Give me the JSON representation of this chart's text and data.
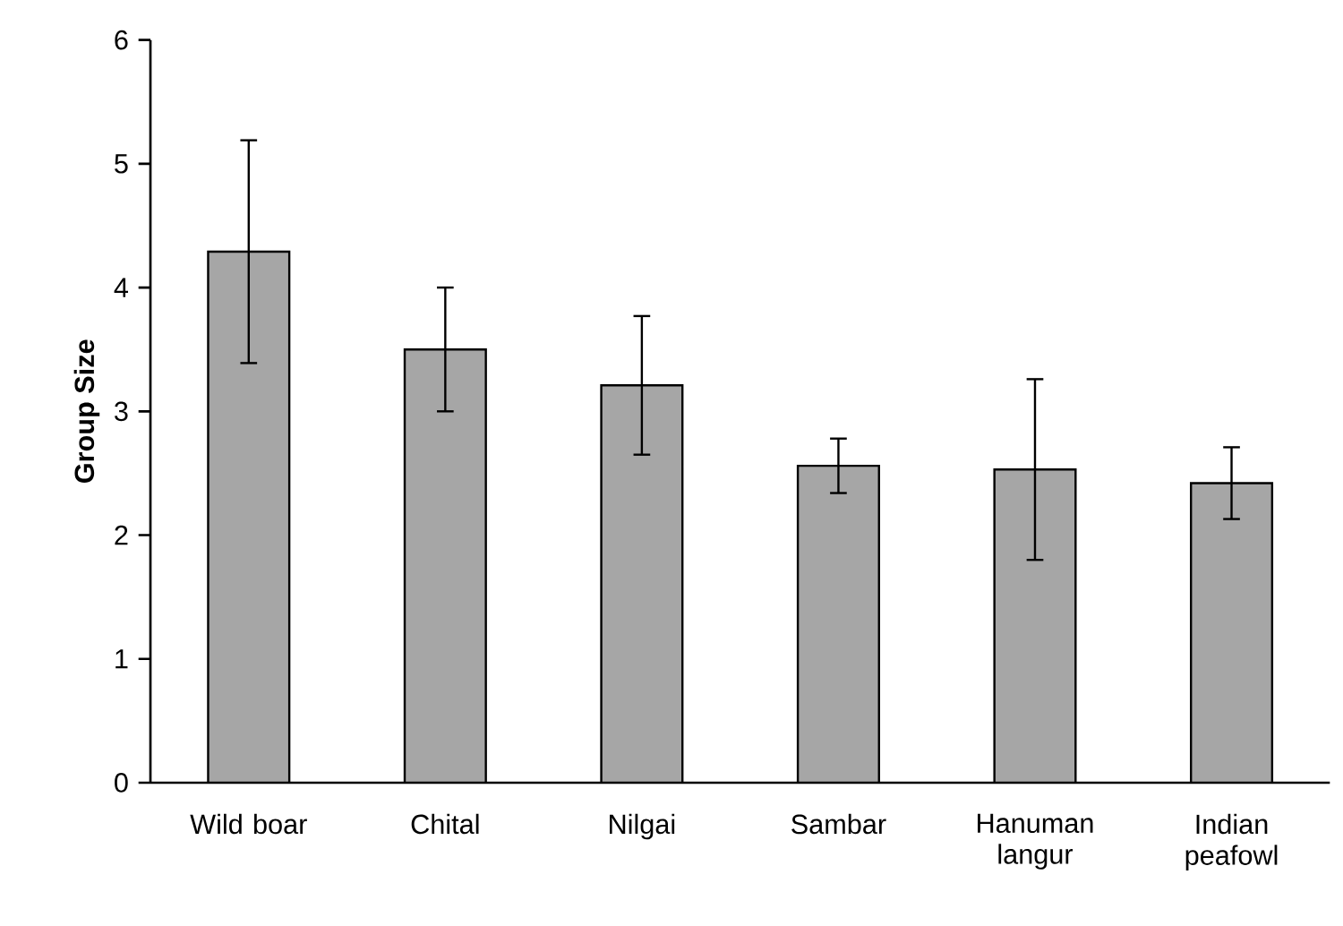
{
  "chart_data": {
    "type": "bar",
    "ylabel": "Group Size",
    "categories": [
      "Wild boar",
      "Chital",
      "Nilgai",
      "Sambar",
      "Hanuman langur",
      "Indian peafowl"
    ],
    "values": [
      4.29,
      3.5,
      3.21,
      2.56,
      2.53,
      2.42
    ],
    "errors": [
      0.9,
      0.5,
      0.56,
      0.22,
      0.73,
      0.29
    ],
    "color": "#a6a6a6",
    "ylim": [
      0,
      6
    ],
    "yticks": [
      0,
      1,
      2,
      3,
      4,
      5,
      6
    ]
  }
}
